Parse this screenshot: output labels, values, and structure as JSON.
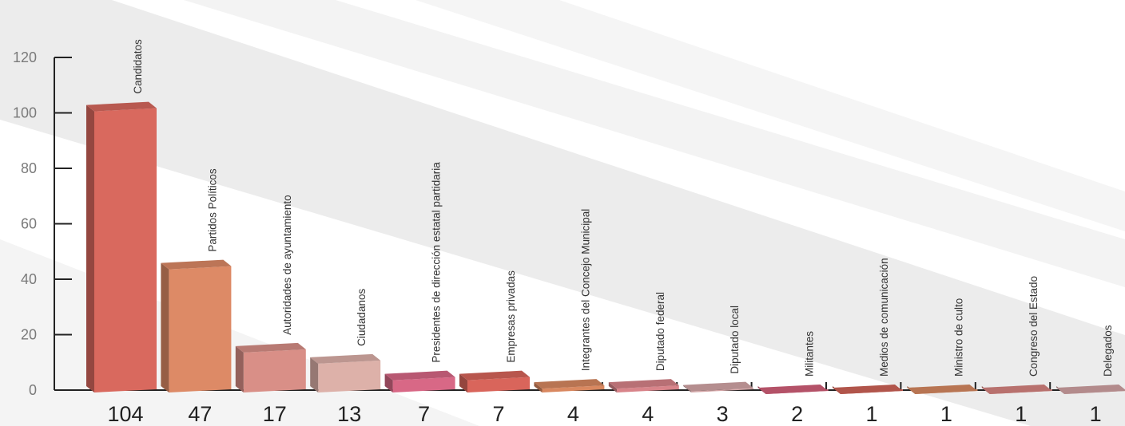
{
  "chart_data": {
    "type": "bar",
    "title": "",
    "xlabel": "",
    "ylabel": "",
    "ylim": [
      0,
      120
    ],
    "yticks": [
      0,
      20,
      40,
      60,
      80,
      100,
      120
    ],
    "grid": false,
    "legend": "none",
    "categories": [
      "Candidatos",
      "Partidos Políticos",
      "Autoridades de ayuntamiento",
      "Ciudadanos",
      "Presidentes de dirección estatal partidaria",
      "Empresas privadas",
      "Integrantes del Concejo Municipal",
      "Diputado federal",
      "Diputado local",
      "Militantes",
      "Medios de comunicación",
      "Ministro de culto",
      "Congreso del Estado",
      "Delegados"
    ],
    "values": [
      104,
      47,
      17,
      13,
      7,
      7,
      4,
      4,
      3,
      2,
      1,
      1,
      1,
      1
    ],
    "value_labels": [
      "104",
      "47",
      "17",
      "13",
      "7",
      "7",
      "4",
      "4",
      "3",
      "2",
      "1",
      "1",
      "1",
      "1"
    ],
    "colors": [
      "#d9695e",
      "#dd8a66",
      "#d98f87",
      "#ddb1a9",
      "#d86886",
      "#d9655b",
      "#d98860",
      "#d8848a",
      "#d5a7a8",
      "#d4617a",
      "#d06458",
      "#d98a62",
      "#d88581",
      "#d3a4a5"
    ]
  }
}
